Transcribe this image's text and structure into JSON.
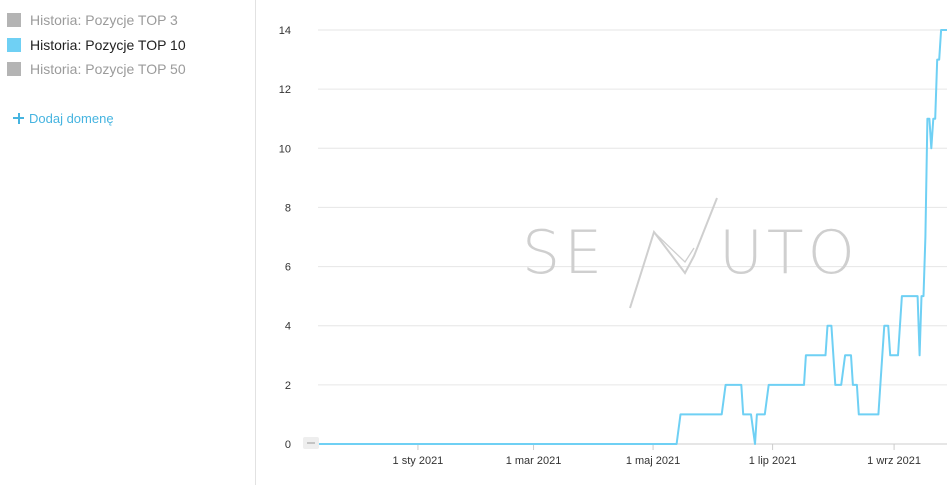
{
  "legend": {
    "items": [
      {
        "label": "Historia: Pozycje TOP 3",
        "color": "#b4b4b4",
        "active": false
      },
      {
        "label": "Historia: Pozycje TOP 10",
        "color": "#6fd0f4",
        "active": true
      },
      {
        "label": "Historia: Pozycje TOP 50",
        "color": "#b4b4b4",
        "active": false
      }
    ],
    "add_domain_label": "Dodaj domenę"
  },
  "watermark": {
    "left": "SE",
    "right": "UTO",
    "color": "#cfcfcf"
  },
  "chart_data": {
    "type": "line",
    "title": "",
    "xlabel": "",
    "ylabel": "",
    "ylim": [
      0,
      14
    ],
    "yticks": [
      0,
      2,
      4,
      6,
      8,
      10,
      12,
      14
    ],
    "xlim": [
      "2020-11-11",
      "2021-09-28"
    ],
    "xticks": [
      {
        "date": "2021-01-01",
        "label": "1 sty 2021"
      },
      {
        "date": "2021-03-01",
        "label": "1 mar 2021"
      },
      {
        "date": "2021-05-01",
        "label": "1 maj 2021"
      },
      {
        "date": "2021-07-01",
        "label": "1 lip 2021"
      },
      {
        "date": "2021-09-01",
        "label": "1 wrz 2021"
      }
    ],
    "grid": true,
    "legend_position": "left",
    "series": [
      {
        "name": "Historia: Pozycje TOP 10",
        "color": "#6fd0f4",
        "points": [
          [
            "2020-11-11",
            0
          ],
          [
            "2021-05-13",
            0
          ],
          [
            "2021-05-15",
            1
          ],
          [
            "2021-06-05",
            1
          ],
          [
            "2021-06-07",
            2
          ],
          [
            "2021-06-15",
            2
          ],
          [
            "2021-06-16",
            1
          ],
          [
            "2021-06-20",
            1
          ],
          [
            "2021-06-22",
            0
          ],
          [
            "2021-06-23",
            1
          ],
          [
            "2021-06-27",
            1
          ],
          [
            "2021-06-29",
            2
          ],
          [
            "2021-07-17",
            2
          ],
          [
            "2021-07-18",
            3
          ],
          [
            "2021-07-28",
            3
          ],
          [
            "2021-07-29",
            4
          ],
          [
            "2021-07-31",
            4
          ],
          [
            "2021-08-02",
            2
          ],
          [
            "2021-08-05",
            2
          ],
          [
            "2021-08-07",
            3
          ],
          [
            "2021-08-10",
            3
          ],
          [
            "2021-08-11",
            2
          ],
          [
            "2021-08-13",
            2
          ],
          [
            "2021-08-14",
            1
          ],
          [
            "2021-08-24",
            1
          ],
          [
            "2021-08-26",
            3
          ],
          [
            "2021-08-27",
            4
          ],
          [
            "2021-08-29",
            4
          ],
          [
            "2021-08-30",
            3
          ],
          [
            "2021-09-03",
            3
          ],
          [
            "2021-09-05",
            5
          ],
          [
            "2021-09-13",
            5
          ],
          [
            "2021-09-14",
            3
          ],
          [
            "2021-09-15",
            5
          ],
          [
            "2021-09-16",
            5
          ],
          [
            "2021-09-17",
            7
          ],
          [
            "2021-09-18",
            11
          ],
          [
            "2021-09-19",
            11
          ],
          [
            "2021-09-20",
            10
          ],
          [
            "2021-09-21",
            11
          ],
          [
            "2021-09-22",
            11
          ],
          [
            "2021-09-23",
            13
          ],
          [
            "2021-09-24",
            13
          ],
          [
            "2021-09-25",
            14
          ],
          [
            "2021-09-28",
            14
          ]
        ]
      }
    ]
  }
}
